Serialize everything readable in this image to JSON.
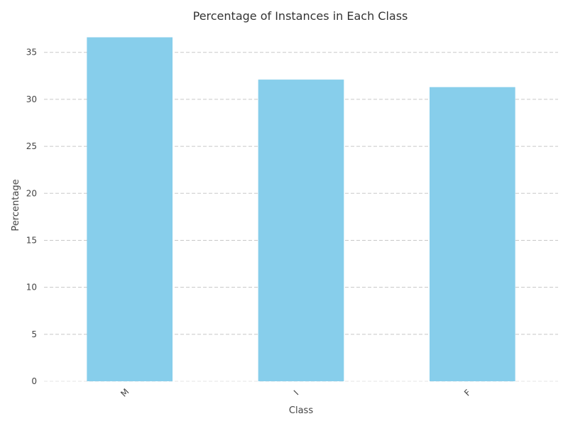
{
  "chart_data": {
    "type": "bar",
    "title": "Percentage of Instances in Each Class",
    "xlabel": "Class",
    "ylabel": "Percentage",
    "categories": [
      "M",
      "I",
      "F"
    ],
    "values": [
      36.6,
      32.1,
      31.3
    ],
    "ylim": [
      0,
      38
    ],
    "yticks": [
      0,
      5,
      10,
      15,
      20,
      25,
      30,
      35
    ],
    "grid": true,
    "bar_color": "#87CEEB"
  }
}
